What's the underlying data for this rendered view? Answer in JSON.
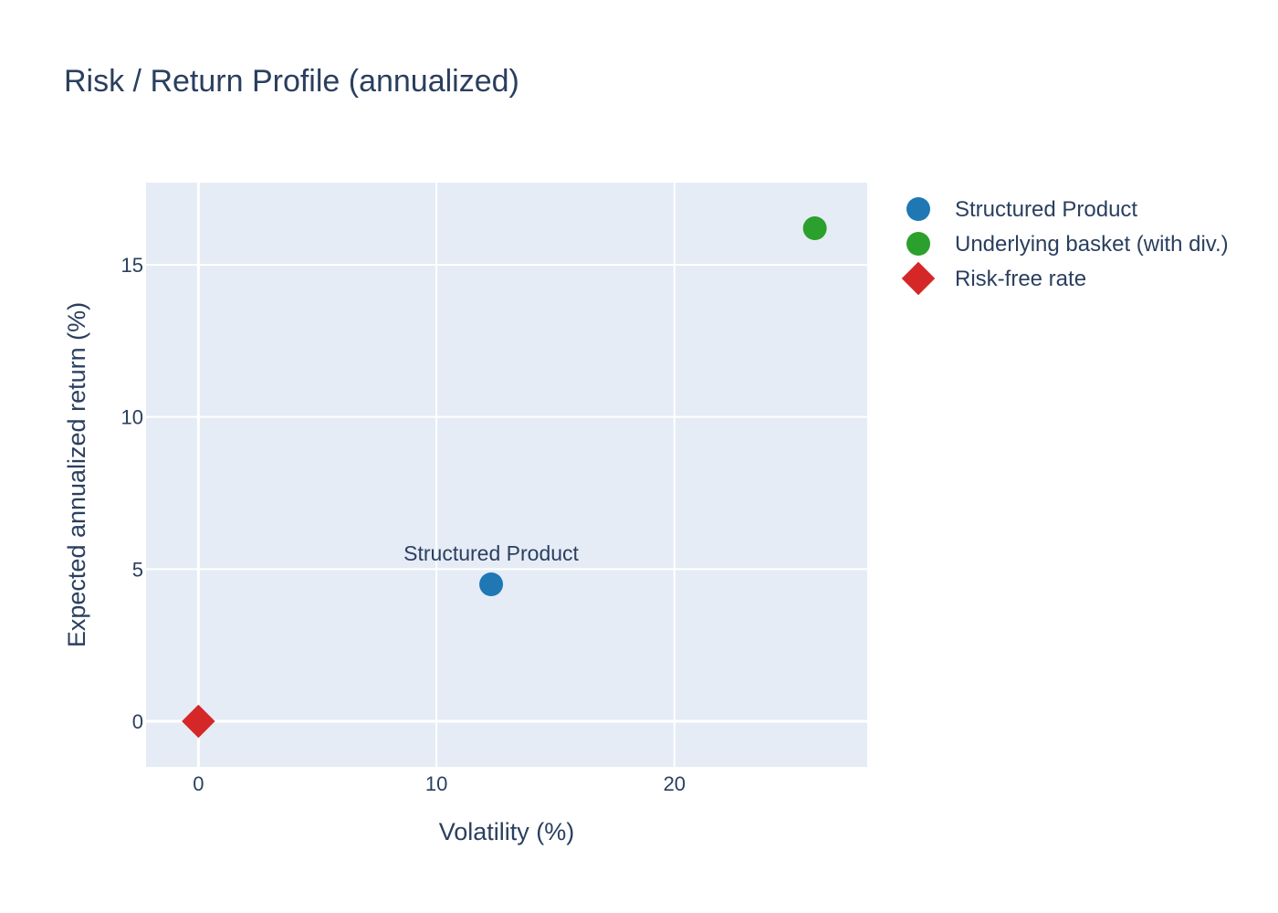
{
  "chart_data": {
    "type": "scatter",
    "title": "Risk / Return Profile (annualized)",
    "xlabel": "Volatility (%)",
    "ylabel": "Expected annualized return (%)",
    "xlim": [
      -2.2,
      28.1
    ],
    "ylim": [
      -1.5,
      17.7
    ],
    "x_ticks": [
      0,
      10,
      20
    ],
    "y_ticks": [
      0,
      5,
      10,
      15
    ],
    "grid": true,
    "legend_position": "right",
    "plot_background": "#e5ecf6",
    "series": [
      {
        "name": "Structured Product",
        "marker": "circle",
        "color": "#1f77b4",
        "points": [
          {
            "x": 12.3,
            "y": 4.5,
            "label": "Structured Product"
          }
        ]
      },
      {
        "name": "Underlying basket (with div.)",
        "marker": "circle",
        "color": "#2ca02c",
        "points": [
          {
            "x": 25.9,
            "y": 16.2,
            "label": ""
          }
        ]
      },
      {
        "name": "Risk-free rate",
        "marker": "diamond",
        "color": "#d62728",
        "points": [
          {
            "x": 0,
            "y": 0,
            "label": ""
          }
        ]
      }
    ]
  }
}
